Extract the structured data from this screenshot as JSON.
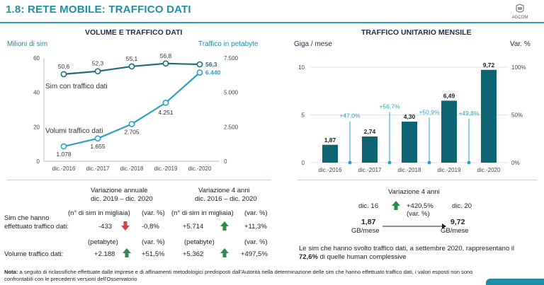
{
  "header": {
    "title": "1.8: RETE MOBILE: TRAFFICO DATI",
    "logo_text": "AGCOM"
  },
  "left_panel": {
    "title": "VOLUME E TRAFFICO DATI",
    "left_axis_label": "Milioni di sim",
    "right_axis_label": "Traffico in petabyte",
    "series1_label": "Sim con traffico dati",
    "series2_label": "Volumi traffico dati"
  },
  "right_panel": {
    "title": "TRAFFICO UNITARIO MENSILE",
    "left_axis_label": "Giga / mese",
    "right_axis_label": "Var. %"
  },
  "chart_data": [
    {
      "type": "line",
      "title": "VOLUME E TRAFFICO DATI",
      "categories": [
        "dic.-2016",
        "dic.-2017",
        "dic.-2018",
        "dic.-2019",
        "dic.-2020"
      ],
      "y_left": {
        "label": "Milioni di sim",
        "ylim": [
          0,
          60
        ],
        "ticks": [
          "0",
          "20",
          "40",
          "60"
        ]
      },
      "y_right": {
        "label": "Traffico in petabyte",
        "ylim": [
          0,
          7500
        ],
        "ticks": [
          "0",
          "2.500",
          "5.000",
          "7.500"
        ]
      },
      "series": [
        {
          "name": "Sim con traffico dati",
          "axis": "left",
          "values": [
            50.6,
            52.3,
            55.1,
            56.8,
            56.3
          ],
          "labels": [
            "50,6",
            "52,3",
            "55,1",
            "56,8",
            "56,3"
          ],
          "color": "#1e6e80"
        },
        {
          "name": "Volumi traffico dati",
          "axis": "right",
          "values": [
            1078,
            1655,
            2705,
            4251,
            6440
          ],
          "labels": [
            "1.078",
            "1.655",
            "2.705",
            "4.251",
            "6.440"
          ],
          "color": "#2aa3c3"
        }
      ]
    },
    {
      "type": "bar",
      "title": "TRAFFICO UNITARIO MENSILE",
      "categories": [
        "dic.-2016",
        "dic.-2017",
        "dic.-2018",
        "dic.-2019",
        "dic.-2020"
      ],
      "values": [
        1.87,
        2.74,
        4.3,
        6.49,
        9.72
      ],
      "labels": [
        "1,87",
        "2,74",
        "4,30",
        "6,49",
        "9,72"
      ],
      "ylim": [
        0,
        10
      ],
      "y_ticks": [
        "0",
        "5",
        "10"
      ],
      "y_right_ticks": [
        "0%",
        "50%",
        "100%"
      ],
      "y_right_lim": [
        0,
        100
      ],
      "bar_color": "#0d6472",
      "variations": [
        {
          "between": [
            0,
            1
          ],
          "label": "+47,0%",
          "value": 47.0
        },
        {
          "between": [
            1,
            2
          ],
          "label": "+56,7%",
          "value": 56.7
        },
        {
          "between": [
            2,
            3
          ],
          "label": "+50,9%",
          "value": 50.9
        },
        {
          "between": [
            3,
            4
          ],
          "label": "+49,8%",
          "value": 49.8
        }
      ],
      "variation_color": "#2aa3c3"
    }
  ],
  "variation_table": {
    "annual_header_1": "Variazione annuale",
    "annual_header_2": "dic. 2019 – dic. 2020",
    "four_year_header_1": "Variazione 4 anni",
    "four_year_header_2": "dic. 2016 – dic. 2020",
    "row1_label_1": "Sim che hanno",
    "row1_label_2": "effettuato traffico dati:",
    "row1_unit_a": "(n° di  sim in migliaia)",
    "row1_unit_b": "(var. %)",
    "row1_annual_abs": "-433",
    "row1_annual_pct": "-0,8%",
    "row1_4y_abs": "+5.714",
    "row1_4y_pct": "+11,3%",
    "row2_label": "Volume traffico dati:",
    "row2_unit_a": "(petabyte)",
    "row2_unit_b": "(var. %)",
    "row2_annual_abs": "+2.188",
    "row2_annual_pct": "+51,5%",
    "row2_4y_abs": "+5.362",
    "row2_4y_pct": "+497,5%"
  },
  "right_summary": {
    "header": "Variazione 4 anni",
    "from_label": "dic. 16",
    "pct": "+420,5%",
    "pct_unit": "(var. %)",
    "to_label": "dic. 20",
    "from_value": "1,87",
    "from_unit": "GB/mese",
    "to_value": "9,72",
    "to_unit": "GB/mese",
    "text_1": "Le sim che hanno svolto traffico dati, a settembre 2020, rappresentano il",
    "text_2_bold": "72,6%",
    "text_2_rest": " di quelle human complessive"
  },
  "footnote": {
    "label": "Nota:",
    "text": " a seguito di riclassifiche effettuate dalle imprese e di affinamenti metodologici predisposti dall'Autorità nella determinazione delle sim che hanno effettuato traffico dati, i valori esposti non sono confrontabili con le precedenti versioni dell'Osservatorio"
  },
  "colors": {
    "accent": "#1f8fa8",
    "up_arrow": "#2e8b4e",
    "down_arrow": "#d64541"
  }
}
